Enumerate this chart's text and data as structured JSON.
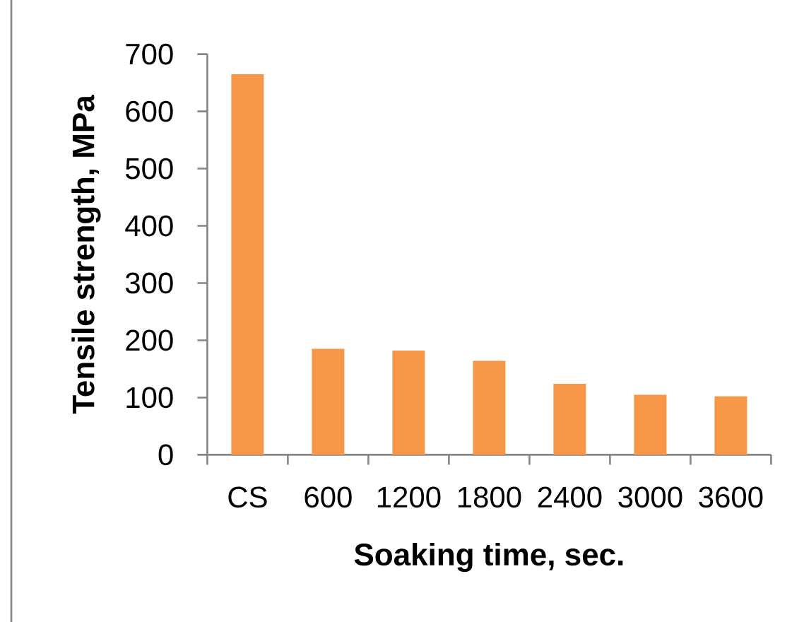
{
  "chart_data": {
    "type": "bar",
    "xlabel": "Soaking time, sec.",
    "ylabel": "Tensile strength, MPa",
    "categories": [
      "CS",
      "600",
      "1200",
      "1800",
      "2400",
      "3000",
      "3600"
    ],
    "values": [
      665,
      185,
      182,
      164,
      124,
      105,
      102
    ],
    "color": "#f79646",
    "ylim": [
      0,
      700
    ],
    "yticks": [
      0,
      100,
      200,
      300,
      400,
      500,
      600,
      700
    ]
  }
}
